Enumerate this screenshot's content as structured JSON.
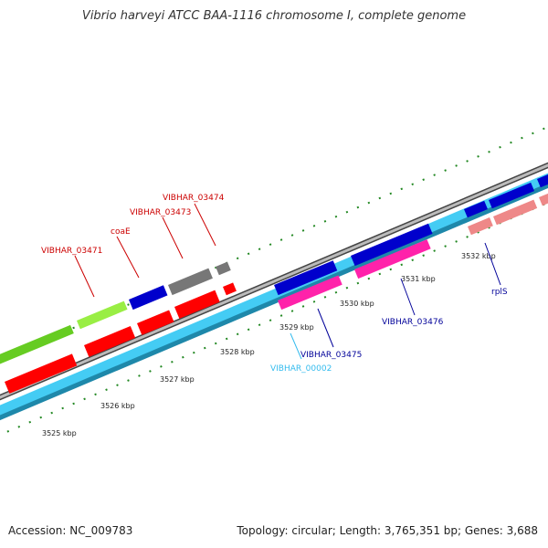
{
  "title": "Vibrio harveyi ATCC BAA-1116 chromosome I, complete genome",
  "footer": {
    "accession": "Accession: NC_009783",
    "stats": "Topology: circular; Length: 3,765,351 bp; Genes: 3,688"
  },
  "ticks": [
    "3525 kbp",
    "3526 kbp",
    "3527 kbp",
    "3528 kbp",
    "3529 kbp",
    "3530 kbp",
    "3531 kbp",
    "3532 kbp"
  ],
  "gene_labels": {
    "vibhar_03474": "VIBHAR_03474",
    "vibhar_03473": "VIBHAR_03473",
    "coae": "coaE",
    "vibhar_03471": "VIBHAR_03471",
    "vibhar_03476": "VIBHAR_03476",
    "rpls": "rplS",
    "vibhar_03475": "VIBHAR_03475",
    "vibhar_00002": "VIBHAR_00002"
  },
  "colors": {
    "red": "#ff0000",
    "dark_red": "#cc0000",
    "blue": "#0000cc",
    "dark_blue": "#00007a",
    "magenta": "#ff22aa",
    "salmon": "#ee8888",
    "gray": "#777777",
    "light_green": "#99ee44",
    "green_tick": "#228822",
    "cyan": "#44ccf4",
    "label_red": "#cc0000",
    "label_blue": "#000099",
    "label_cyan": "#33bbee"
  }
}
